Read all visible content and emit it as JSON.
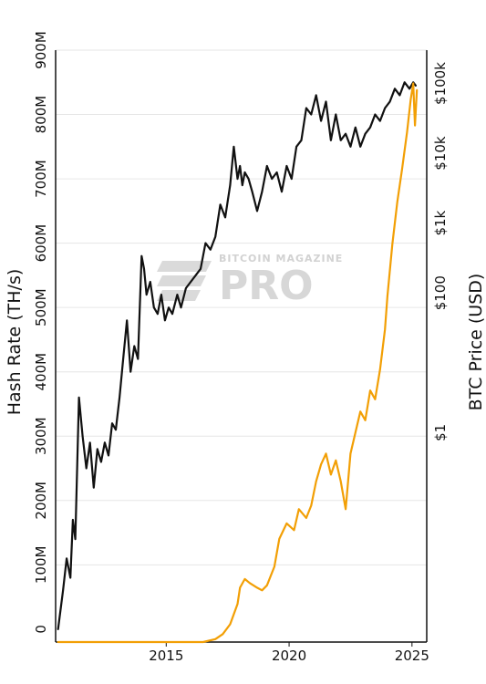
{
  "colors": {
    "hashrate": "#111111",
    "price": "#f29f05",
    "grid": "#e6e6e6",
    "axis": "#111111",
    "watermark": "#d5d5d5"
  },
  "watermark": {
    "top": "BITCOIN MAGAZINE",
    "big": "PRO"
  },
  "chart_data": {
    "type": "line",
    "grid": true,
    "xlabel": "",
    "y_left_label": "Hash Rate (TH/s)",
    "y_right_label": "BTC Price (USD)",
    "x_range": [
      2010.5,
      2025.6
    ],
    "x_ticks": [
      2015,
      2020,
      2025
    ],
    "x_tick_labels": [
      "2015",
      "2020",
      "2025"
    ],
    "y_left_range": [
      -20000000,
      900000000
    ],
    "y_left_ticks": [
      0,
      100000000,
      200000000,
      300000000,
      400000000,
      500000000,
      600000000,
      700000000,
      800000000,
      900000000
    ],
    "y_left_tick_labels": [
      "0",
      "100M",
      "200M",
      "300M",
      "400M",
      "500M",
      "600M",
      "700M",
      "800M",
      "900M"
    ],
    "y_right_scale": "log",
    "y_right_range": [
      0.001,
      300000
    ],
    "y_right_ticks": [
      1,
      100,
      1000,
      10000,
      100000
    ],
    "y_right_tick_labels": [
      "$1",
      "$100",
      "$1k",
      "$10k",
      "$100k"
    ],
    "series": [
      {
        "name": "Hash Rate",
        "axis": "left",
        "x": [
          2010.6,
          2010.8,
          2010.95,
          2011.1,
          2011.2,
          2011.3,
          2011.45,
          2011.6,
          2011.75,
          2011.9,
          2012.05,
          2012.2,
          2012.35,
          2012.5,
          2012.65,
          2012.8,
          2012.95,
          2013.1,
          2013.25,
          2013.4,
          2013.55,
          2013.7,
          2013.85,
          2014.0,
          2014.1,
          2014.2,
          2014.35,
          2014.5,
          2014.65,
          2014.8,
          2014.95,
          2015.1,
          2015.25,
          2015.45,
          2015.6,
          2015.8,
          2016.0,
          2016.2,
          2016.4,
          2016.6,
          2016.8,
          2017.0,
          2017.2,
          2017.4,
          2017.6,
          2017.75,
          2017.9,
          2018.0,
          2018.1,
          2018.2,
          2018.35,
          2018.5,
          2018.7,
          2018.9,
          2019.1,
          2019.3,
          2019.5,
          2019.7,
          2019.9,
          2020.1,
          2020.3,
          2020.5,
          2020.7,
          2020.9,
          2021.1,
          2021.3,
          2021.5,
          2021.7,
          2021.9,
          2022.1,
          2022.3,
          2022.5,
          2022.7,
          2022.9,
          2023.1,
          2023.3,
          2023.5,
          2023.7,
          2023.9,
          2024.1,
          2024.3,
          2024.5,
          2024.7,
          2024.9,
          2025.05,
          2025.15
        ],
        "values": [
          0,
          60000000,
          110000000,
          80000000,
          170000000,
          140000000,
          360000000,
          300000000,
          250000000,
          290000000,
          220000000,
          280000000,
          260000000,
          290000000,
          270000000,
          320000000,
          310000000,
          360000000,
          420000000,
          480000000,
          400000000,
          440000000,
          420000000,
          580000000,
          560000000,
          520000000,
          540000000,
          500000000,
          490000000,
          520000000,
          480000000,
          500000000,
          490000000,
          520000000,
          500000000,
          530000000,
          540000000,
          550000000,
          560000000,
          600000000,
          590000000,
          610000000,
          660000000,
          640000000,
          690000000,
          750000000,
          700000000,
          720000000,
          690000000,
          710000000,
          700000000,
          680000000,
          650000000,
          680000000,
          720000000,
          700000000,
          710000000,
          680000000,
          720000000,
          700000000,
          750000000,
          760000000,
          810000000,
          800000000,
          830000000,
          790000000,
          820000000,
          760000000,
          800000000,
          760000000,
          770000000,
          750000000,
          780000000,
          750000000,
          770000000,
          780000000,
          800000000,
          790000000,
          810000000,
          820000000,
          840000000,
          830000000,
          850000000,
          840000000,
          850000000,
          845000000
        ]
      },
      {
        "name": "BTC Price",
        "axis": "right",
        "x": [
          2010.6,
          2011.5,
          2012.5,
          2013.5,
          2014.5,
          2015.5,
          2016.5,
          2017.0,
          2017.3,
          2017.6,
          2017.9,
          2018.0,
          2018.2,
          2018.4,
          2018.7,
          2018.9,
          2019.1,
          2019.4,
          2019.6,
          2019.9,
          2020.2,
          2020.4,
          2020.7,
          2020.9,
          2021.1,
          2021.3,
          2021.5,
          2021.7,
          2021.9,
          2022.1,
          2022.3,
          2022.5,
          2022.7,
          2022.9,
          2023.1,
          2023.3,
          2023.5,
          2023.7,
          2023.9,
          2024.0,
          2024.2,
          2024.4,
          2024.6,
          2024.8,
          2024.95,
          2025.05,
          2025.12,
          2025.2
        ],
        "values": [
          0.001,
          0.001,
          0.001,
          0.001,
          0.001,
          0.001,
          0.001,
          0.0011,
          0.0013,
          0.0018,
          0.0035,
          0.006,
          0.008,
          0.007,
          0.006,
          0.0055,
          0.0065,
          0.012,
          0.03,
          0.05,
          0.04,
          0.08,
          0.06,
          0.09,
          0.2,
          0.35,
          0.5,
          0.25,
          0.4,
          0.2,
          0.08,
          0.5,
          1.0,
          2.0,
          1.5,
          4.0,
          3.0,
          8.0,
          30.0,
          90.0,
          500.0,
          2000.0,
          6000.0,
          20000.0,
          60000.0,
          100000.0,
          25000.0,
          80000.0
        ]
      }
    ]
  }
}
